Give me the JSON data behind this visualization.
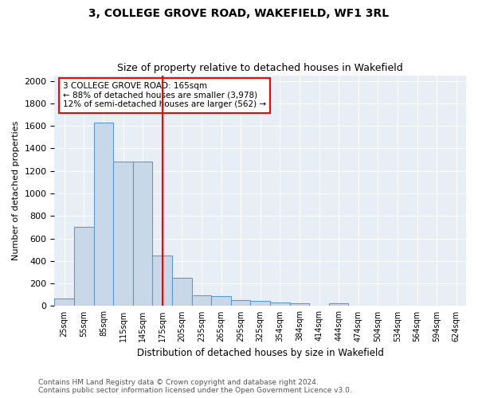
{
  "title": "3, COLLEGE GROVE ROAD, WAKEFIELD, WF1 3RL",
  "subtitle": "Size of property relative to detached houses in Wakefield",
  "xlabel": "Distribution of detached houses by size in Wakefield",
  "ylabel": "Number of detached properties",
  "bar_color": "#c8d8e8",
  "bar_edge_color": "#5b9bd5",
  "background_color": "#e8eef5",
  "categories": [
    "25sqm",
    "55sqm",
    "85sqm",
    "115sqm",
    "145sqm",
    "175sqm",
    "205sqm",
    "235sqm",
    "265sqm",
    "295sqm",
    "325sqm",
    "354sqm",
    "384sqm",
    "414sqm",
    "444sqm",
    "474sqm",
    "504sqm",
    "534sqm",
    "564sqm",
    "594sqm",
    "624sqm"
  ],
  "values": [
    68,
    700,
    1630,
    1285,
    1285,
    447,
    250,
    95,
    90,
    50,
    45,
    28,
    26,
    0,
    22,
    0,
    0,
    0,
    0,
    0,
    0
  ],
  "ylim": [
    0,
    2050
  ],
  "yticks": [
    0,
    200,
    400,
    600,
    800,
    1000,
    1200,
    1400,
    1600,
    1800,
    2000
  ],
  "red_line_x": 5.0,
  "annotation_text": "3 COLLEGE GROVE ROAD: 165sqm\n← 88% of detached houses are smaller (3,978)\n12% of semi-detached houses are larger (562) →",
  "footer_line1": "Contains HM Land Registry data © Crown copyright and database right 2024.",
  "footer_line2": "Contains public sector information licensed under the Open Government Licence v3.0."
}
